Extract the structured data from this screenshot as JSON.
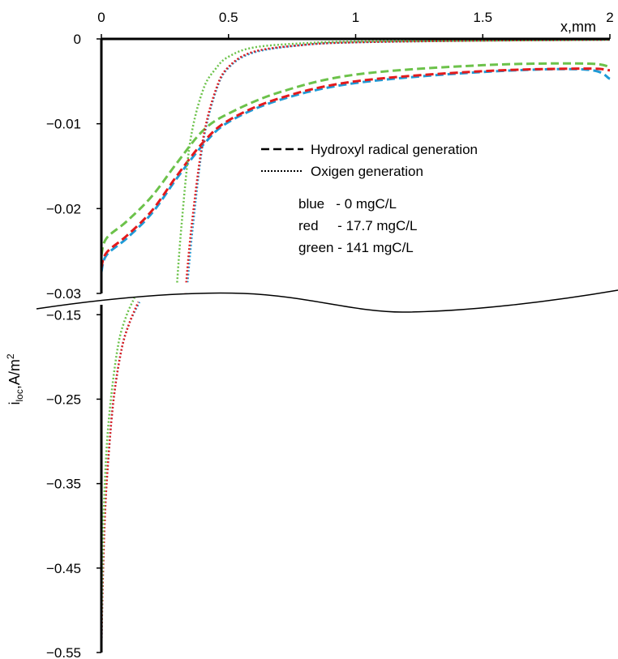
{
  "chart_data": {
    "type": "line",
    "title": "",
    "xlabel": "x,mm",
    "ylabel": {
      "main": "i",
      "sub": "loc",
      "unit": ",A/m",
      "sup": "2"
    },
    "x_range": [
      0,
      2
    ],
    "x_ticks": [
      "0",
      "0.5",
      "1",
      "1.5",
      "2"
    ],
    "y_axis_break": true,
    "upper_panel": {
      "ylim": [
        -0.03,
        0
      ],
      "y_ticks": [
        "0",
        "−0.01",
        "−0.02",
        "−0.03"
      ]
    },
    "lower_panel": {
      "ylim": [
        -0.55,
        -0.12
      ],
      "y_ticks": [
        "−0.15",
        "−0.25",
        "−0.35",
        "−0.45",
        "−0.55"
      ]
    },
    "legend": {
      "line_styles": [
        {
          "style": "dashed",
          "label": "Hydroxyl radical generation"
        },
        {
          "style": "dotted",
          "label": "Oxigen generation"
        }
      ],
      "colors": [
        {
          "name": "blue",
          "label": "blue   - 0 mgC/L",
          "hex": "#1e9bd7"
        },
        {
          "name": "red",
          "label": "red     - 17.7 mgC/L",
          "hex": "#e31a1c"
        },
        {
          "name": "green",
          "label": "green - 141 mgC/L",
          "hex": "#6cc24a"
        }
      ]
    },
    "series": [
      {
        "color": "blue",
        "style": "dashed",
        "x": [
          0.0,
          0.02,
          0.1,
          0.2,
          0.3,
          0.4,
          0.5,
          0.7,
          1.0,
          1.5,
          1.9,
          2.0
        ],
        "y": [
          -0.0275,
          -0.0255,
          -0.0235,
          -0.0205,
          -0.0163,
          -0.0125,
          -0.0098,
          -0.0072,
          -0.0052,
          -0.0039,
          -0.0036,
          -0.0047
        ]
      },
      {
        "color": "red",
        "style": "dashed",
        "x": [
          0.0,
          0.02,
          0.1,
          0.2,
          0.3,
          0.4,
          0.5,
          0.7,
          1.0,
          1.5,
          1.9,
          2.0
        ],
        "y": [
          -0.027,
          -0.0252,
          -0.0232,
          -0.0202,
          -0.016,
          -0.0122,
          -0.0096,
          -0.007,
          -0.005,
          -0.0038,
          -0.0035,
          -0.0037
        ]
      },
      {
        "color": "green",
        "style": "dashed",
        "x": [
          0.0,
          0.02,
          0.1,
          0.2,
          0.3,
          0.4,
          0.5,
          0.7,
          1.0,
          1.5,
          1.9,
          2.0
        ],
        "y": [
          -0.0255,
          -0.0235,
          -0.0215,
          -0.0185,
          -0.0145,
          -0.0108,
          -0.0088,
          -0.0063,
          -0.0042,
          -0.0031,
          -0.0029,
          -0.0033
        ]
      },
      {
        "color": "blue",
        "style": "dotted",
        "upper": {
          "x": [
            0.335,
            0.36,
            0.4,
            0.45,
            0.5,
            0.6,
            0.8,
            1.0,
            1.5,
            2.0
          ],
          "y": [
            -0.03,
            -0.022,
            -0.0122,
            -0.0062,
            -0.0034,
            -0.0016,
            -0.0007,
            -0.0004,
            -0.0002,
            -0.0001
          ]
        },
        "lower": {
          "x": [
            0.0,
            0.005,
            0.015,
            0.03,
            0.05,
            0.08,
            0.11,
            0.15
          ],
          "y": [
            -0.55,
            -0.47,
            -0.38,
            -0.31,
            -0.245,
            -0.19,
            -0.16,
            -0.135
          ]
        }
      },
      {
        "color": "red",
        "style": "dotted",
        "upper": {
          "x": [
            0.33,
            0.355,
            0.4,
            0.45,
            0.5,
            0.6,
            0.8,
            1.0,
            1.5,
            2.0
          ],
          "y": [
            -0.03,
            -0.022,
            -0.0118,
            -0.006,
            -0.0033,
            -0.0015,
            -0.0007,
            -0.0004,
            -0.0002,
            -0.0001
          ]
        },
        "lower": {
          "x": [
            0.0,
            0.005,
            0.015,
            0.03,
            0.05,
            0.08,
            0.11,
            0.145
          ],
          "y": [
            -0.55,
            -0.47,
            -0.38,
            -0.31,
            -0.245,
            -0.19,
            -0.16,
            -0.135
          ]
        }
      },
      {
        "color": "green",
        "style": "dotted",
        "upper": {
          "x": [
            0.295,
            0.315,
            0.35,
            0.4,
            0.45,
            0.5,
            0.6,
            0.8,
            1.0,
            1.5,
            2.0
          ],
          "y": [
            -0.03,
            -0.022,
            -0.012,
            -0.006,
            -0.0035,
            -0.0021,
            -0.001,
            -0.0005,
            -0.0003,
            -0.0002,
            -0.0001
          ]
        },
        "lower": {
          "x": [
            0.0,
            0.004,
            0.012,
            0.025,
            0.045,
            0.07,
            0.1,
            0.13
          ],
          "y": [
            -0.55,
            -0.45,
            -0.36,
            -0.29,
            -0.23,
            -0.18,
            -0.15,
            -0.13
          ]
        }
      }
    ]
  }
}
